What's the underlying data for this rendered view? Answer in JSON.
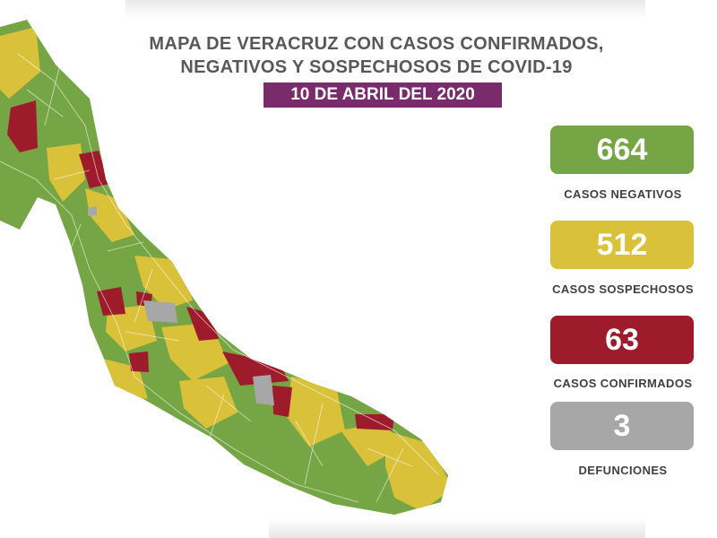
{
  "header": {
    "title_line1": "MAPA DE VERACRUZ CON CASOS CONFIRMADOS,",
    "title_line2": "NEGATIVOS Y SOSPECHOSOS DE COVID-19",
    "date": "10 DE ABRIL DEL 2020",
    "date_color": "#7a2b6c"
  },
  "stats": [
    {
      "value": "664",
      "label": "CASOS NEGATIVOS",
      "color": "#76a545"
    },
    {
      "value": "512",
      "label": "CASOS SOSPECHOSOS",
      "color": "#d9c13a"
    },
    {
      "value": "63",
      "label": "CASOS CONFIRMADOS",
      "color": "#9e1b2c"
    },
    {
      "value": "3",
      "label": "DEFUNCIONES",
      "color": "#a7a7a7"
    }
  ],
  "map": {
    "region": "Veracruz",
    "legend_colors": {
      "negativos": "#76a545",
      "sospechosos": "#d9c13a",
      "confirmados": "#9e1b2c",
      "defunciones": "#a7a7a7"
    }
  }
}
